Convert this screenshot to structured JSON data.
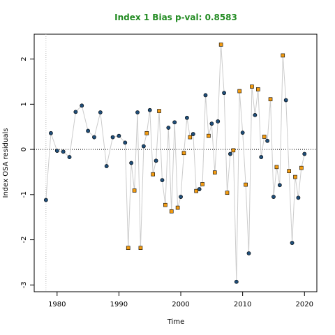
{
  "chart_data": {
    "type": "scatter",
    "title": "Index 1 Bias p-val: 0.8583",
    "title_color": "#228B22",
    "xlabel": "Time",
    "ylabel": "Index OSA residuals",
    "xlim": [
      1976.3,
      2022.0
    ],
    "ylim": [
      -3.15,
      2.55
    ],
    "x_ticks": [
      1980,
      1990,
      2000,
      2010,
      2020
    ],
    "y_ticks": [
      -3,
      -2,
      -1,
      0,
      1,
      2
    ],
    "reference_line": {
      "y": 0,
      "style": "dotted"
    },
    "vertical_reference_line": {
      "x": 1978.2,
      "style": "dotted",
      "color": "#bbbbbb"
    },
    "line_color": "#cccccc",
    "series": [
      {
        "marker": "circle",
        "color": "#1f4e79",
        "points": [
          [
            1978.2,
            -1.12
          ],
          [
            1979.0,
            0.36
          ],
          [
            1980.0,
            -0.03
          ],
          [
            1981.0,
            -0.05
          ],
          [
            1982.0,
            -0.17
          ],
          [
            1983.0,
            0.83
          ],
          [
            1984.0,
            0.97
          ],
          [
            1985.0,
            0.41
          ],
          [
            1986.0,
            0.27
          ],
          [
            1987.0,
            0.82
          ],
          [
            1988.0,
            -0.37
          ],
          [
            1989.0,
            0.27
          ],
          [
            1990.0,
            0.3
          ],
          [
            1991.0,
            0.15
          ],
          [
            1992.0,
            -0.3
          ],
          [
            1993.0,
            0.82
          ],
          [
            1994.0,
            0.07
          ],
          [
            1995.0,
            0.87
          ],
          [
            1996.0,
            -0.25
          ],
          [
            1997.0,
            -0.68
          ],
          [
            1998.0,
            0.48
          ],
          [
            1999.0,
            0.6
          ],
          [
            2000.0,
            -1.05
          ],
          [
            2001.0,
            0.7
          ],
          [
            2002.0,
            0.34
          ],
          [
            2003.0,
            -0.88
          ],
          [
            2004.0,
            1.2
          ],
          [
            2005.0,
            0.57
          ],
          [
            2006.0,
            0.62
          ],
          [
            2007.0,
            1.25
          ],
          [
            2008.0,
            -0.1
          ],
          [
            2009.0,
            -2.93
          ],
          [
            2010.0,
            0.37
          ],
          [
            2011.0,
            -2.3
          ],
          [
            2012.0,
            0.76
          ],
          [
            2013.0,
            -0.17
          ],
          [
            2014.0,
            0.19
          ],
          [
            2015.0,
            -1.05
          ],
          [
            2016.0,
            -0.79
          ],
          [
            2017.0,
            1.09
          ],
          [
            2018.0,
            -2.07
          ],
          [
            2019.0,
            -1.07
          ],
          [
            2020.0,
            -0.1
          ]
        ]
      },
      {
        "marker": "square",
        "color": "#f39c12",
        "points": [
          [
            1991.5,
            -2.18
          ],
          [
            1992.5,
            -0.91
          ],
          [
            1993.5,
            -2.18
          ],
          [
            1994.5,
            0.36
          ],
          [
            1995.5,
            -0.55
          ],
          [
            1996.5,
            0.85
          ],
          [
            1997.5,
            -1.23
          ],
          [
            1998.5,
            -1.37
          ],
          [
            1999.5,
            -1.29
          ],
          [
            2000.5,
            -0.08
          ],
          [
            2001.5,
            0.27
          ],
          [
            2002.5,
            -0.92
          ],
          [
            2003.5,
            -0.77
          ],
          [
            2004.5,
            0.3
          ],
          [
            2005.5,
            -0.51
          ],
          [
            2006.5,
            2.32
          ],
          [
            2007.5,
            -0.96
          ],
          [
            2008.5,
            -0.02
          ],
          [
            2009.5,
            1.29
          ],
          [
            2010.5,
            -0.78
          ],
          [
            2011.5,
            1.39
          ],
          [
            2012.5,
            1.33
          ],
          [
            2013.5,
            0.28
          ],
          [
            2014.5,
            1.11
          ],
          [
            2015.5,
            -0.39
          ],
          [
            2016.5,
            2.08
          ],
          [
            2017.5,
            -0.48
          ],
          [
            2018.5,
            -0.61
          ],
          [
            2019.5,
            -0.41
          ]
        ]
      }
    ]
  }
}
